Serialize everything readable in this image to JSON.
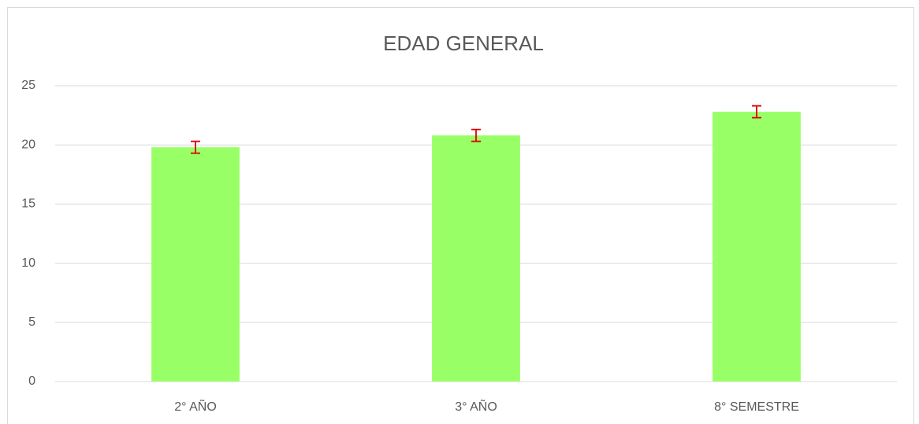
{
  "chart_data": {
    "type": "bar",
    "title": "EDAD GENERAL",
    "categories": [
      "2° AÑO",
      "3° AÑO",
      "8° SEMESTRE"
    ],
    "values": [
      19.8,
      20.8,
      22.8
    ],
    "errors": [
      0.5,
      0.5,
      0.5
    ],
    "color": "#99ff66",
    "error_color": "#e00000",
    "ylim": [
      0,
      25
    ],
    "yticks": [
      0,
      5,
      10,
      15,
      20,
      25
    ],
    "grid": true
  }
}
